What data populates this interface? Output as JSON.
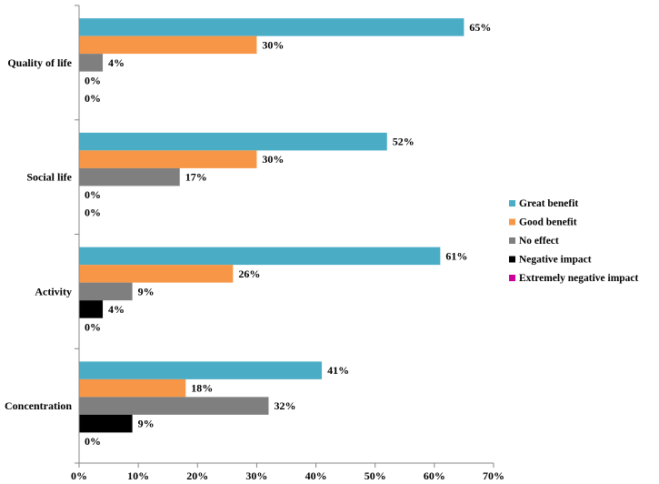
{
  "chart_data": {
    "type": "bar",
    "orientation": "horizontal",
    "categories": [
      "Quality of life",
      "Social life",
      "Activity",
      "Concentration"
    ],
    "series": [
      {
        "name": "Great benefit",
        "color": "#4BACC6",
        "values": [
          65,
          52,
          61,
          41
        ],
        "labels": [
          "65%",
          "52%",
          "61%",
          "41%"
        ]
      },
      {
        "name": "Good benefit",
        "color": "#F79646",
        "values": [
          30,
          30,
          26,
          18
        ],
        "labels": [
          "30%",
          "30%",
          "26%",
          "18%"
        ]
      },
      {
        "name": "No effect",
        "color": "#7F7F7F",
        "values": [
          4,
          17,
          9,
          32
        ],
        "labels": [
          "4%",
          "17%",
          "9%",
          "32%"
        ]
      },
      {
        "name": "Negative impact",
        "color": "#000000",
        "values": [
          0,
          0,
          4,
          9
        ],
        "labels": [
          "0%",
          "0%",
          "4%",
          "9%"
        ]
      },
      {
        "name": "Extremely negative impact",
        "color": "#CC0099",
        "values": [
          0,
          0,
          0,
          0
        ],
        "labels": [
          "0%",
          "0%",
          "0%",
          "0%"
        ]
      }
    ],
    "xticks": [
      "0%",
      "10%",
      "20%",
      "30%",
      "40%",
      "50%",
      "60%",
      "70%"
    ],
    "xlim": [
      0,
      70
    ],
    "legend_position": "right",
    "grid": false,
    "title": "",
    "xlabel": "",
    "ylabel": ""
  }
}
